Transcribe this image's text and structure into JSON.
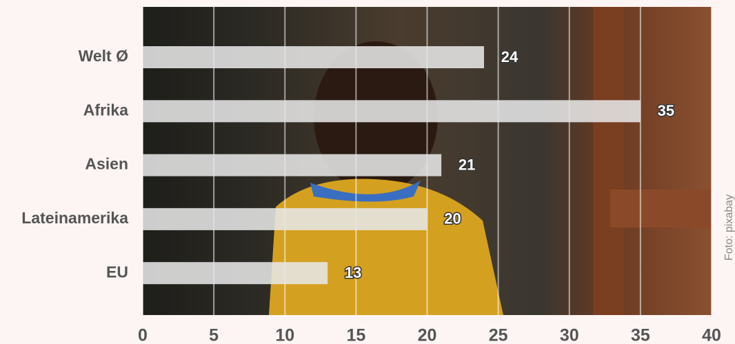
{
  "chart_data": {
    "type": "bar",
    "orientation": "horizontal",
    "categories": [
      "Welt Ø",
      "Afrika",
      "Asien",
      "Lateinamerika",
      "EU"
    ],
    "values": [
      24,
      35,
      21,
      20,
      13
    ],
    "color": "#e6e6e6",
    "xlim": [
      0,
      40
    ],
    "xticks": [
      0,
      5,
      10,
      15,
      20,
      25,
      30,
      35,
      40
    ],
    "grid": true,
    "credit": "Foto: pixabay"
  }
}
